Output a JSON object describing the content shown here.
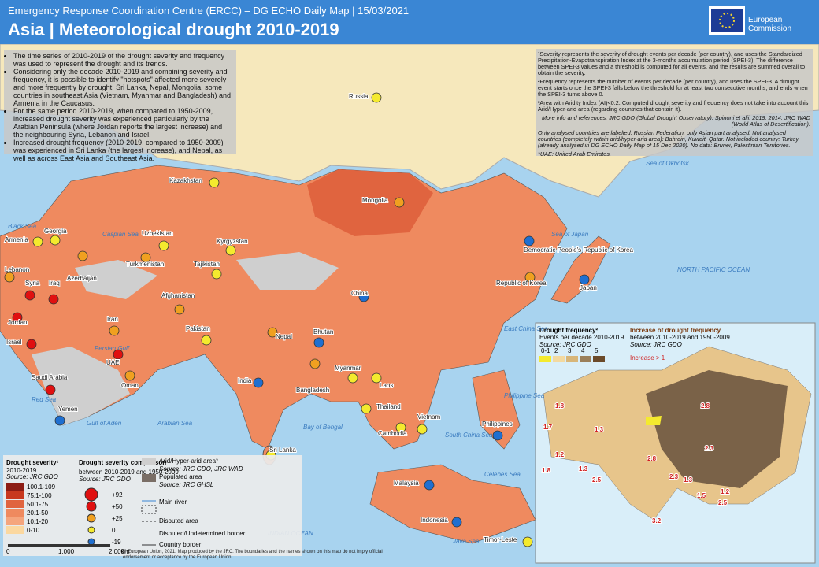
{
  "header": {
    "agency": "Emergency Response Coordination Centre (ERCC) – DG ECHO Daily Map | 15/03/2021",
    "title": "Asia | Meteorological drought 2010-2019",
    "logo": "European Commission"
  },
  "bullets": [
    "The time series of 2010-2019 of the drought severity and frequency was used to represent the drought and its trends.",
    "Considering only the decade 2010-2019 and combining severity and frequency, it is possible to identify \"hotspots\" affected more severely and more frequently by drought: Sri Lanka, Nepal, Mongolia, some countries in southeast Asia (Vietnam, Myanmar and Bangladesh) and Armenia in the Caucasus.",
    "For the same period 2010-2019, when compared to 1950-2009, increased drought severity was experienced particularly by the Arabian Peninsula (where Jordan reports the largest increase) and the neighbouring Syria, Lebanon and Israel.",
    "Increased drought frequency (2010-2019, compared to 1950-2009) was experienced in Sri Lanka (the largest increase), and Nepal, as well as across East Asia and Southeast Asia."
  ],
  "notes": [
    "¹Severity represents the severity of drought events per decade (per country), and uses the Standardized Precipitation-Evapotranspiration Index at the 3-months accumulation period (SPEI-3). The difference between SPEI-3 values and a threshold is computed for all events, and the results are summed overall to obtain the severity.",
    "²Frequency represents the number of events per decade (per country), and uses the SPEI-3. A drought event starts once the SPEI-3 falls below the threshold for at least two consecutive months, and ends when the SPEI-3 turns above 0.",
    "³Area with Aridity Index (AI)<0.2. Computed drought severity and frequency does not take into account this Arid/Hyper-arid area (regarding countries that contain it).",
    "More info and references: JRC GDO (Global Drought Observatory), Spinoni et alii, 2019, 2014, JRC WAD (World Atlas of Desertification).",
    "Only analysed countries are labelled. Russian Federation: only Asian part analysed. Not analysed countries (completely within arid/hyper-arid area): Bahrain, Kuwait, Qatar. Not included country: Turkey (already analysed in DG ECHO Daily Map of 15 Dec 2020). No data: Brunei, Palestinian Territories.",
    "*UAE: United Arab Emirates."
  ],
  "countries": [
    "Russia",
    "Kazakhstan",
    "Mongolia",
    "Georgia",
    "Armenia",
    "Uzbekistan",
    "Kyrgyzstan",
    "Turkmenistan",
    "Tajikistan",
    "Lebanon",
    "Syria",
    "Iraq",
    "Azerbaijan",
    "Democratic People's Republic of Korea",
    "Republic of Korea",
    "Japan",
    "China",
    "Afghanistan",
    "Jordan",
    "Iran",
    "Israel",
    "Pakistan",
    "Nepal",
    "Bhutan",
    "UAE",
    "Myanmar",
    "Saudi Arabia",
    "India",
    "Oman",
    "Bangladesh",
    "Laos",
    "Yemen",
    "Thailand",
    "Vietnam",
    "Cambodia",
    "Philippines",
    "Sri Lanka",
    "Malaysia",
    "Indonesia",
    "Timor-Leste"
  ],
  "seas": [
    "Sea of Okhotsk",
    "NORTH PACIFIC OCEAN",
    "INDIAN OCEAN",
    "Bay of Bengal",
    "Arabian Sea",
    "South China Sea",
    "Philippine Sea",
    "East China Sea",
    "Black Sea",
    "Caspian Sea",
    "Sea of Japan",
    "Java Sea",
    "Celebes Sea",
    "Gulf of Aden",
    "Red Sea",
    "Persian Gulf"
  ],
  "legend": {
    "severity_title": "Drought severity¹",
    "severity_period": "2010-2019",
    "severity_source": "Source: JRC GDO",
    "severity_classes": [
      "100.1-109",
      "75.1-100",
      "50.1-75",
      "20.1-50",
      "10.1-20",
      "0-10"
    ],
    "comparison_title": "Drought severity comparison",
    "comparison_period": "between 2010-2019 and 1950-2009",
    "comparison_source": "Source: JRC GDO",
    "comparison_classes": [
      "+92",
      "+50",
      "+25",
      "0",
      "-19"
    ],
    "other": [
      "Arid/Hyper-arid area³",
      "Source: JRC GDO, JRC WAD",
      "Populated area",
      "Source: JRC GHSL",
      "Main river",
      "Disputed area",
      "Disputed/Undetermined border",
      "Country border"
    ],
    "scale": [
      "0",
      "1,000",
      "2,000",
      "km"
    ]
  },
  "inset": {
    "freq_title": "Drought frequency²",
    "freq_sub": "Events per decade 2010-2019",
    "freq_source": "Source: JRC GDO",
    "freq_classes": [
      "0-1",
      "2",
      "3",
      "4",
      "5"
    ],
    "inc_title": "Increase of drought frequency",
    "inc_sub": "between 2010-2019 and 1950-2009",
    "inc_source": "Source: JRC GDO",
    "inc_key": "Increase > 1",
    "labels": [
      1.8,
      1.7,
      1.3,
      1.2,
      1.8,
      1.3,
      2.5,
      2.8,
      2.8,
      2.3,
      2.3,
      1.3,
      1.5,
      1.2,
      2.5,
      3.2
    ]
  },
  "footer": "© European Union, 2021. Map produced by the JRC. The boundaries and the names shown on this map do not imply official endorsement or acceptance by the European Union."
}
